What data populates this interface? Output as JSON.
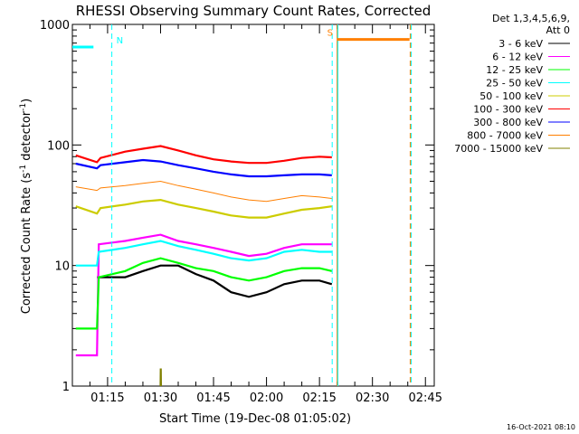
{
  "chart_data": {
    "type": "line",
    "title": "RHESSI Observing Summary Count Rates, Corrected",
    "xlabel": "Start Time (19-Dec-08 01:05:02)",
    "ylabel_parts": [
      "Corrected Count Rate (s",
      "-1",
      " detector",
      "-1",
      ")"
    ],
    "y_scale": "log",
    "ylim": [
      1,
      1000
    ],
    "y_ticks": [
      {
        "value": 1,
        "label": "1"
      },
      {
        "value": 10,
        "label": "10"
      },
      {
        "value": 100,
        "label": "100"
      },
      {
        "value": 1000,
        "label": "1000"
      }
    ],
    "xlim_minutes": [
      65.03,
      167.5
    ],
    "x_ticks": [
      {
        "minute": 75,
        "label": "01:15"
      },
      {
        "minute": 90,
        "label": "01:30"
      },
      {
        "minute": 105,
        "label": "01:45"
      },
      {
        "minute": 120,
        "label": "02:00"
      },
      {
        "minute": 135,
        "label": "02:15"
      },
      {
        "minute": 150,
        "label": "02:30"
      },
      {
        "minute": 165,
        "label": "02:45"
      }
    ],
    "legend_header": [
      "Det 1,3,4,5,6,9,",
      "Att 0"
    ],
    "legend_placement": "right",
    "series": [
      {
        "name": "3 - 6 keV",
        "color": "#000000",
        "points": [
          [
            72,
            8
          ],
          [
            75,
            8
          ],
          [
            80,
            8
          ],
          [
            85,
            9
          ],
          [
            90,
            10
          ],
          [
            95,
            10
          ],
          [
            100,
            8.5
          ],
          [
            105,
            7.5
          ],
          [
            110,
            6
          ],
          [
            115,
            5.5
          ],
          [
            120,
            6
          ],
          [
            125,
            7
          ],
          [
            130,
            7.5
          ],
          [
            135,
            7.5
          ],
          [
            138.5,
            7
          ]
        ]
      },
      {
        "name": "6 - 12 keV",
        "color": "#ff00ff",
        "points": [
          [
            66,
            1.8
          ],
          [
            72,
            1.8
          ],
          [
            72.5,
            15
          ],
          [
            80,
            16
          ],
          [
            85,
            17
          ],
          [
            90,
            18
          ],
          [
            95,
            16
          ],
          [
            100,
            15
          ],
          [
            105,
            14
          ],
          [
            110,
            13
          ],
          [
            115,
            12
          ],
          [
            120,
            12.5
          ],
          [
            125,
            14
          ],
          [
            130,
            15
          ],
          [
            135,
            15
          ],
          [
            138.5,
            15
          ]
        ]
      },
      {
        "name": "12 - 25 keV",
        "color": "#00ff00",
        "points": [
          [
            66,
            3
          ],
          [
            72,
            3
          ],
          [
            72.5,
            8
          ],
          [
            80,
            9
          ],
          [
            85,
            10.5
          ],
          [
            90,
            11.5
          ],
          [
            95,
            10.5
          ],
          [
            100,
            9.5
          ],
          [
            105,
            9
          ],
          [
            110,
            8
          ],
          [
            115,
            7.5
          ],
          [
            120,
            8
          ],
          [
            125,
            9
          ],
          [
            130,
            9.5
          ],
          [
            135,
            9.5
          ],
          [
            138.5,
            9
          ]
        ]
      },
      {
        "name": "25 - 50 keV",
        "color": "#00ffff",
        "points": [
          [
            66,
            10
          ],
          [
            72,
            10
          ],
          [
            72.5,
            13
          ],
          [
            80,
            14
          ],
          [
            85,
            15
          ],
          [
            90,
            16
          ],
          [
            95,
            14.5
          ],
          [
            100,
            13.5
          ],
          [
            105,
            12.5
          ],
          [
            110,
            11.5
          ],
          [
            115,
            11
          ],
          [
            120,
            11.5
          ],
          [
            125,
            13
          ],
          [
            130,
            13.5
          ],
          [
            135,
            13
          ],
          [
            138.5,
            13
          ]
        ]
      },
      {
        "name": "50 - 100 keV",
        "color": "#cccc00",
        "points": [
          [
            66,
            31
          ],
          [
            72,
            27
          ],
          [
            73,
            30
          ],
          [
            80,
            32
          ],
          [
            85,
            34
          ],
          [
            90,
            35
          ],
          [
            95,
            32
          ],
          [
            100,
            30
          ],
          [
            105,
            28
          ],
          [
            110,
            26
          ],
          [
            115,
            25
          ],
          [
            120,
            25
          ],
          [
            125,
            27
          ],
          [
            130,
            29
          ],
          [
            135,
            30
          ],
          [
            138.5,
            31
          ]
        ]
      },
      {
        "name": "100 - 300 keV",
        "color": "#ff0000",
        "points": [
          [
            66,
            82
          ],
          [
            72,
            72
          ],
          [
            73,
            78
          ],
          [
            80,
            88
          ],
          [
            85,
            93
          ],
          [
            90,
            98
          ],
          [
            95,
            90
          ],
          [
            100,
            82
          ],
          [
            105,
            76
          ],
          [
            110,
            73
          ],
          [
            115,
            71
          ],
          [
            120,
            71
          ],
          [
            125,
            74
          ],
          [
            130,
            78
          ],
          [
            135,
            80
          ],
          [
            138.5,
            79
          ]
        ]
      },
      {
        "name": "300 - 800 keV",
        "color": "#0000ff",
        "points": [
          [
            66,
            70
          ],
          [
            72,
            64
          ],
          [
            73,
            68
          ],
          [
            80,
            72
          ],
          [
            85,
            75
          ],
          [
            90,
            73
          ],
          [
            95,
            68
          ],
          [
            100,
            64
          ],
          [
            105,
            60
          ],
          [
            110,
            57
          ],
          [
            115,
            55
          ],
          [
            120,
            55
          ],
          [
            125,
            56
          ],
          [
            130,
            57
          ],
          [
            135,
            57
          ],
          [
            138.5,
            56
          ]
        ]
      },
      {
        "name": "800 - 7000 keV",
        "color": "#ff7f00",
        "points": [
          [
            66,
            45
          ],
          [
            72,
            42
          ],
          [
            73,
            44
          ],
          [
            80,
            46
          ],
          [
            85,
            48
          ],
          [
            90,
            50
          ],
          [
            95,
            46
          ],
          [
            100,
            43
          ],
          [
            105,
            40
          ],
          [
            110,
            37
          ],
          [
            115,
            35
          ],
          [
            120,
            34
          ],
          [
            125,
            36
          ],
          [
            130,
            38
          ],
          [
            135,
            37
          ],
          [
            138.5,
            36
          ]
        ]
      },
      {
        "name": "7000 - 15000 keV",
        "color": "#808000",
        "points": [
          [
            90,
            1
          ],
          [
            90.05,
            1.4
          ],
          [
            90.1,
            1
          ]
        ]
      }
    ],
    "flag_lines": [
      {
        "label": "N",
        "color": "#00ffff",
        "level": 650,
        "segments": [
          [
            65.03,
            71
          ],
          [
            76,
            76.1
          ]
        ]
      },
      {
        "label": "S",
        "color": "#ff7f00",
        "level": 750,
        "segments": [
          [
            140,
            160.5
          ]
        ]
      }
    ],
    "vertical_lines": [
      {
        "minute": 76.2,
        "color": "#00ffff",
        "style": "dashed"
      },
      {
        "minute": 138.6,
        "color": "#00ffff",
        "style": "dashed"
      },
      {
        "minute": 140,
        "color": "#ff7f00",
        "style": "solid"
      },
      {
        "minute": 160.7,
        "color": "#ff7f00",
        "style": "dashed"
      },
      {
        "minute": 140.2,
        "color": "#00ffff",
        "style": "solid"
      },
      {
        "minute": 161,
        "color": "#00ffff",
        "style": "dashed"
      }
    ],
    "timestamp": "16-Oct-2021 08:10"
  }
}
